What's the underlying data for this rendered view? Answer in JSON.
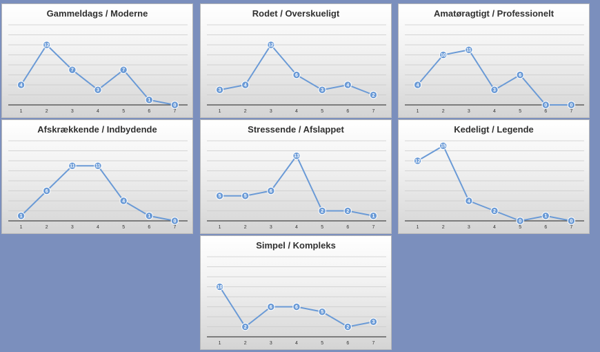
{
  "colors": {
    "background": "#7b8fbd",
    "line": "#6a9ad6",
    "marker": "#6a9ad6",
    "grid": "#c9c9c9",
    "axis": "#444444"
  },
  "chart_data": [
    {
      "type": "line",
      "title": "Gammeldags / Moderne",
      "categories": [
        "1",
        "2",
        "3",
        "4",
        "5",
        "6",
        "7"
      ],
      "values": [
        4,
        12,
        7,
        3,
        7,
        1,
        0
      ],
      "ylim": [
        0,
        16
      ]
    },
    {
      "type": "line",
      "title": "Rodet / Overskueligt",
      "categories": [
        "1",
        "2",
        "3",
        "4",
        "5",
        "6",
        "7"
      ],
      "values": [
        3,
        4,
        12,
        6,
        3,
        4,
        2
      ],
      "ylim": [
        0,
        16
      ]
    },
    {
      "type": "line",
      "title": "Amatøragtigt / Professionelt",
      "categories": [
        "1",
        "2",
        "3",
        "4",
        "5",
        "6",
        "7"
      ],
      "values": [
        4,
        10,
        11,
        3,
        6,
        0,
        0
      ],
      "ylim": [
        0,
        16
      ]
    },
    {
      "type": "line",
      "title": "Afskrækkende / Indbydende",
      "categories": [
        "1",
        "2",
        "3",
        "4",
        "5",
        "6",
        "7"
      ],
      "values": [
        1,
        6,
        11,
        11,
        4,
        1,
        0
      ],
      "ylim": [
        0,
        16
      ]
    },
    {
      "type": "line",
      "title": "Stressende / Afslappet",
      "categories": [
        "1",
        "2",
        "3",
        "4",
        "5",
        "6",
        "7"
      ],
      "values": [
        5,
        5,
        6,
        13,
        2,
        2,
        1
      ],
      "ylim": [
        0,
        16
      ]
    },
    {
      "type": "line",
      "title": "Kedeligt / Legende",
      "categories": [
        "1",
        "2",
        "3",
        "4",
        "5",
        "6",
        "7"
      ],
      "values": [
        12,
        15,
        4,
        2,
        0,
        1,
        0
      ],
      "ylim": [
        0,
        16
      ]
    },
    {
      "type": "line",
      "title": "Simpel / Kompleks",
      "categories": [
        "1",
        "2",
        "3",
        "4",
        "5",
        "6",
        "7"
      ],
      "values": [
        10,
        2,
        6,
        6,
        5,
        2,
        3
      ],
      "ylim": [
        0,
        16
      ]
    }
  ]
}
